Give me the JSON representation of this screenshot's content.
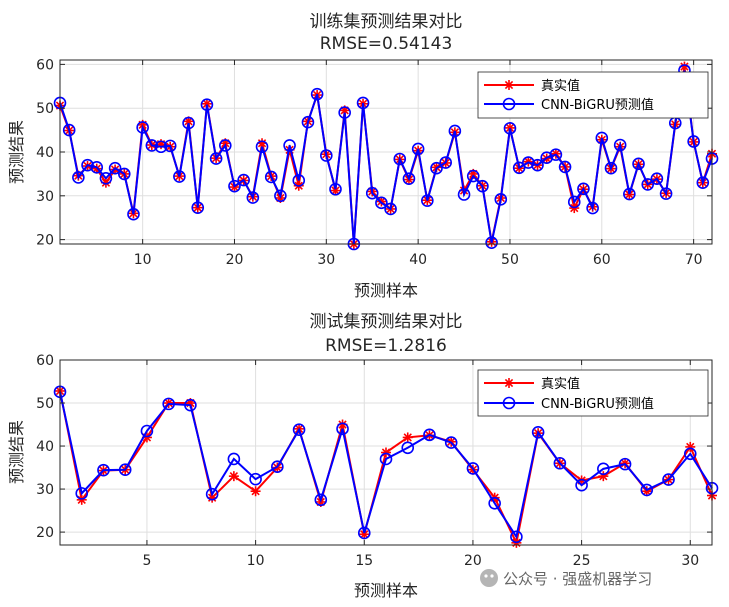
{
  "colors": {
    "true_series": "#ff0000",
    "pred_series": "#0000ff",
    "grid": "#dfdfdf",
    "axes": "#262626"
  },
  "watermark": "公众号 · 强盛机器学习",
  "chart_data": [
    {
      "type": "line",
      "title": "训练集预测结果对比",
      "subtitle": "RMSE=0.54143",
      "xlabel": "预测样本",
      "ylabel": "预测结果",
      "xlim": [
        1,
        72
      ],
      "ylim": [
        19,
        61
      ],
      "xticks": [
        10,
        20,
        30,
        40,
        50,
        60,
        70
      ],
      "yticks": [
        20,
        30,
        40,
        50,
        60
      ],
      "grid": true,
      "legend_position": "top-right",
      "series": [
        {
          "name": "真实值",
          "marker": "star",
          "values": [
            50.6,
            44.9,
            34.6,
            36.8,
            36.2,
            33.0,
            36.0,
            35.0,
            26.0,
            46.2,
            41.6,
            41.8,
            41.2,
            34.5,
            47.0,
            27.3,
            51.0,
            38.6,
            42.0,
            32.0,
            33.5,
            29.8,
            42.0,
            34.5,
            29.5,
            40.5,
            32.3,
            47.0,
            53.0,
            39.5,
            31.2,
            49.5,
            19.0,
            51.0,
            31.0,
            28.7,
            27.0,
            38.3,
            33.7,
            40.3,
            29.0,
            36.5,
            37.5,
            44.5,
            31.2,
            35.0,
            32.3,
            19.5,
            29.5,
            45.5,
            36.3,
            37.8,
            37.0,
            38.5,
            39.6,
            36.6,
            27.2,
            31.5,
            27.5,
            42.8,
            36.2,
            41.2,
            30.3,
            37.2,
            32.6,
            33.8,
            30.6,
            46.3,
            59.5,
            42.3,
            33.0,
            39.6
          ]
        },
        {
          "name": "CNN-BiGRU预测值",
          "marker": "circle",
          "values": [
            51.2,
            45.0,
            34.2,
            37.0,
            36.5,
            34.0,
            36.3,
            35.0,
            25.8,
            45.6,
            41.5,
            41.2,
            41.4,
            34.4,
            46.6,
            27.3,
            50.8,
            38.5,
            41.5,
            32.2,
            33.6,
            29.6,
            41.2,
            34.3,
            30.0,
            41.5,
            33.5,
            46.8,
            53.2,
            39.2,
            31.5,
            49.0,
            19.0,
            51.2,
            30.6,
            28.4,
            27.0,
            38.4,
            33.9,
            40.7,
            28.9,
            36.3,
            37.6,
            44.8,
            30.3,
            34.5,
            32.2,
            19.3,
            29.2,
            45.4,
            36.4,
            37.6,
            37.0,
            38.7,
            39.4,
            36.6,
            28.6,
            31.6,
            27.2,
            43.2,
            36.3,
            41.6,
            30.4,
            37.3,
            32.6,
            33.9,
            30.5,
            46.6,
            58.6,
            42.4,
            33.0,
            38.5
          ]
        }
      ]
    },
    {
      "type": "line",
      "title": "测试集预测结果对比",
      "subtitle": "RMSE=1.2816",
      "xlabel": "预测样本",
      "ylabel": "预测结果",
      "xlim": [
        1,
        31
      ],
      "ylim": [
        17,
        60
      ],
      "xticks": [
        5,
        10,
        15,
        20,
        25,
        30
      ],
      "yticks": [
        20,
        30,
        40,
        50,
        60
      ],
      "grid": true,
      "legend_position": "top-right",
      "series": [
        {
          "name": "真实值",
          "marker": "star",
          "values": [
            52.8,
            27.5,
            34.3,
            34.5,
            42.0,
            50.0,
            50.0,
            28.0,
            33.0,
            29.5,
            35.0,
            44.0,
            27.0,
            45.0,
            19.5,
            38.5,
            42.0,
            42.5,
            41.0,
            34.5,
            28.0,
            17.5,
            43.0,
            36.0,
            32.0,
            33.0,
            36.0,
            29.5,
            32.2,
            39.8,
            28.5
          ]
        },
        {
          "name": "CNN-BiGRU预测值",
          "marker": "circle",
          "values": [
            52.6,
            29.0,
            34.4,
            34.5,
            43.5,
            49.8,
            49.5,
            28.8,
            37.0,
            32.3,
            35.2,
            43.8,
            27.5,
            44.0,
            19.8,
            37.0,
            39.6,
            42.6,
            40.8,
            34.8,
            26.7,
            18.9,
            43.2,
            36.0,
            30.9,
            34.7,
            35.8,
            29.8,
            32.2,
            38.2,
            30.2
          ]
        }
      ]
    }
  ]
}
